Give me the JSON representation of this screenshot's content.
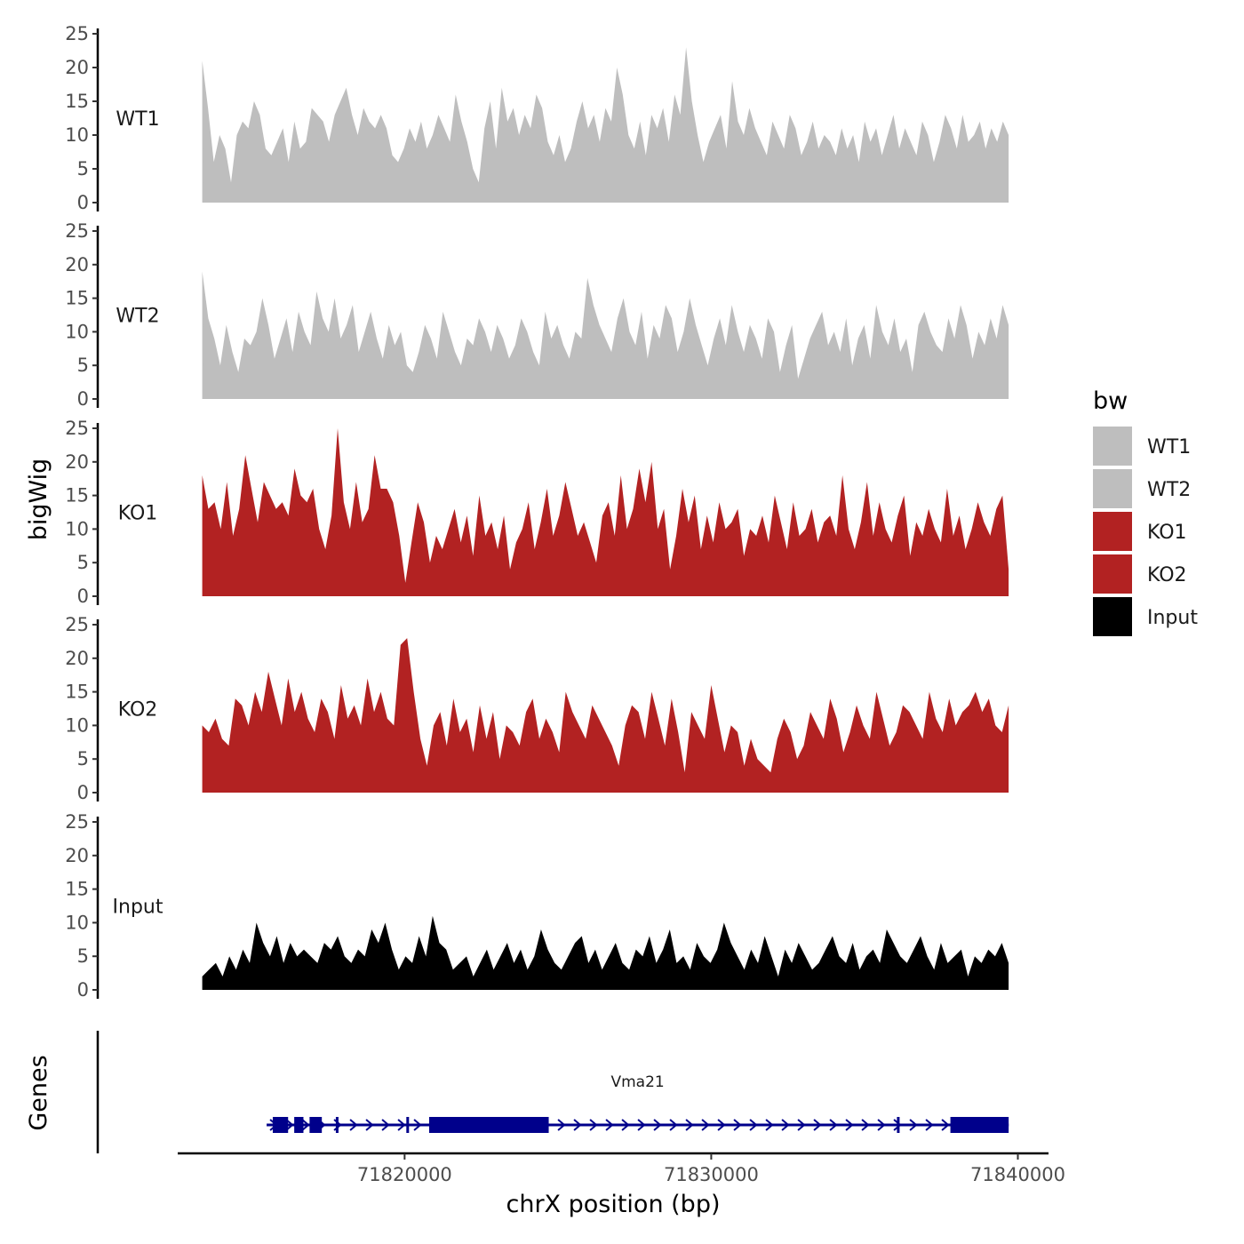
{
  "chart_data": {
    "type": "area",
    "ylabel": "bigWig",
    "xlabel": "chrX position (bp)",
    "ylim": [
      0,
      25
    ],
    "yticks": [
      0,
      5,
      10,
      15,
      20,
      25
    ],
    "xlim": [
      71812600,
      71841000
    ],
    "xticks": [
      71820000,
      71830000,
      71840000
    ],
    "x_start": 71813400,
    "x_end": 71839700,
    "tracks": [
      {
        "name": "WT1",
        "color": "#bebebe",
        "values": [
          21,
          14,
          6,
          10,
          8,
          3,
          10,
          12,
          11,
          15,
          13,
          8,
          7,
          9,
          11,
          6,
          12,
          8,
          9,
          14,
          13,
          12,
          9,
          13,
          15,
          17,
          13,
          10,
          14,
          12,
          11,
          13,
          11,
          7,
          6,
          8,
          11,
          9,
          12,
          8,
          10,
          13,
          11,
          9,
          16,
          12,
          9,
          5,
          3,
          11,
          15,
          8,
          17,
          12,
          14,
          10,
          13,
          11,
          16,
          14,
          9,
          7,
          10,
          6,
          8,
          12,
          15,
          11,
          13,
          9,
          14,
          12,
          20,
          16,
          10,
          8,
          12,
          7,
          13,
          11,
          14,
          9,
          16,
          13,
          23,
          15,
          10,
          6,
          9,
          11,
          13,
          8,
          18,
          12,
          10,
          14,
          11,
          9,
          7,
          12,
          10,
          8,
          13,
          11,
          7,
          9,
          12,
          8,
          10,
          9,
          7,
          11,
          8,
          10,
          6,
          12,
          9,
          11,
          7,
          10,
          13,
          8,
          11,
          9,
          7,
          12,
          10,
          6,
          9,
          13,
          11,
          8,
          13,
          9,
          10,
          12,
          8,
          11,
          9,
          12,
          10
        ]
      },
      {
        "name": "WT2",
        "color": "#bebebe",
        "values": [
          19,
          12,
          9,
          5,
          11,
          7,
          4,
          9,
          8,
          10,
          15,
          11,
          6,
          9,
          12,
          7,
          13,
          10,
          8,
          16,
          12,
          10,
          15,
          9,
          11,
          14,
          7,
          10,
          13,
          9,
          6,
          11,
          8,
          10,
          5,
          4,
          7,
          11,
          9,
          6,
          13,
          10,
          7,
          5,
          9,
          8,
          12,
          10,
          7,
          11,
          9,
          6,
          8,
          12,
          10,
          7,
          5,
          13,
          9,
          11,
          8,
          6,
          10,
          9,
          18,
          14,
          11,
          9,
          7,
          12,
          15,
          10,
          8,
          13,
          6,
          11,
          9,
          14,
          12,
          7,
          10,
          15,
          11,
          8,
          5,
          9,
          12,
          8,
          14,
          10,
          7,
          11,
          9,
          6,
          12,
          10,
          4,
          8,
          11,
          3,
          6,
          9,
          11,
          13,
          8,
          10,
          7,
          12,
          5,
          9,
          11,
          6,
          14,
          10,
          8,
          12,
          7,
          9,
          4,
          11,
          13,
          10,
          8,
          7,
          12,
          9,
          14,
          11,
          6,
          10,
          8,
          12,
          9,
          14,
          11
        ]
      },
      {
        "name": "KO1",
        "color": "#b22222",
        "values": [
          18,
          13,
          14,
          10,
          17,
          9,
          13,
          21,
          16,
          11,
          17,
          15,
          13,
          14,
          12,
          19,
          15,
          14,
          16,
          10,
          7,
          12,
          25,
          14,
          10,
          17,
          11,
          13,
          21,
          16,
          16,
          14,
          9,
          2,
          8,
          14,
          11,
          5,
          9,
          7,
          10,
          13,
          8,
          12,
          6,
          15,
          9,
          11,
          7,
          12,
          4,
          8,
          10,
          14,
          7,
          11,
          16,
          9,
          12,
          17,
          13,
          9,
          11,
          8,
          5,
          12,
          14,
          9,
          18,
          10,
          13,
          19,
          14,
          20,
          10,
          13,
          4,
          9,
          16,
          11,
          15,
          7,
          12,
          8,
          14,
          10,
          11,
          13,
          6,
          10,
          9,
          12,
          8,
          15,
          11,
          7,
          14,
          9,
          10,
          13,
          8,
          11,
          12,
          9,
          18,
          10,
          7,
          11,
          17,
          9,
          14,
          10,
          8,
          12,
          15,
          6,
          11,
          9,
          13,
          10,
          8,
          16,
          9,
          12,
          7,
          10,
          14,
          11,
          9,
          13,
          15,
          4
        ]
      },
      {
        "name": "KO2",
        "color": "#b22222",
        "values": [
          10,
          9,
          11,
          8,
          7,
          14,
          13,
          10,
          15,
          12,
          18,
          14,
          10,
          17,
          12,
          15,
          11,
          9,
          14,
          12,
          8,
          16,
          11,
          13,
          10,
          17,
          12,
          15,
          11,
          10,
          22,
          23,
          15,
          8,
          4,
          10,
          12,
          7,
          14,
          9,
          11,
          6,
          13,
          8,
          12,
          5,
          10,
          9,
          7,
          12,
          14,
          8,
          11,
          9,
          6,
          15,
          12,
          10,
          8,
          13,
          11,
          9,
          7,
          4,
          10,
          13,
          12,
          8,
          15,
          11,
          7,
          14,
          9,
          3,
          12,
          10,
          8,
          16,
          11,
          6,
          10,
          9,
          4,
          8,
          5,
          4,
          3,
          8,
          11,
          9,
          5,
          7,
          12,
          10,
          8,
          14,
          11,
          6,
          9,
          13,
          10,
          8,
          15,
          11,
          7,
          9,
          13,
          12,
          10,
          8,
          15,
          11,
          9,
          14,
          10,
          12,
          13,
          15,
          12,
          14,
          10,
          9,
          13
        ]
      },
      {
        "name": "Input",
        "color": "#000000",
        "values": [
          2,
          3,
          4,
          2,
          5,
          3,
          6,
          4,
          10,
          7,
          5,
          8,
          4,
          7,
          5,
          6,
          5,
          4,
          7,
          6,
          8,
          5,
          4,
          6,
          5,
          9,
          7,
          10,
          6,
          3,
          5,
          4,
          8,
          5,
          11,
          7,
          6,
          3,
          4,
          5,
          2,
          4,
          6,
          3,
          5,
          7,
          4,
          6,
          3,
          5,
          9,
          6,
          4,
          3,
          5,
          7,
          8,
          4,
          6,
          3,
          5,
          7,
          4,
          3,
          6,
          5,
          8,
          4,
          6,
          9,
          4,
          5,
          3,
          7,
          5,
          4,
          6,
          10,
          7,
          5,
          3,
          6,
          4,
          8,
          5,
          2,
          6,
          4,
          7,
          5,
          3,
          4,
          6,
          8,
          5,
          4,
          7,
          3,
          5,
          6,
          4,
          9,
          7,
          5,
          4,
          6,
          8,
          5,
          3,
          7,
          4,
          5,
          6,
          2,
          5,
          4,
          6,
          5,
          7,
          4
        ]
      }
    ],
    "gene": {
      "name": "Vma21",
      "start": 71815500,
      "end": 71839700,
      "strand": "+",
      "color": "#00008b",
      "exons": [
        [
          71815700,
          71816200
        ],
        [
          71816400,
          71816700
        ],
        [
          71816900,
          71817300
        ],
        [
          71820800,
          71824700
        ],
        [
          71837800,
          71839700
        ]
      ],
      "small_exons": [
        71817800,
        71820100,
        71836100
      ]
    },
    "legend": {
      "title": "bw",
      "position": "right",
      "entries": [
        {
          "label": "WT1",
          "color": "#bebebe"
        },
        {
          "label": "WT2",
          "color": "#bebebe"
        },
        {
          "label": "KO1",
          "color": "#b22222"
        },
        {
          "label": "KO2",
          "color": "#b22222"
        },
        {
          "label": "Input",
          "color": "#000000"
        }
      ]
    },
    "genes_panel_label": "Genes"
  }
}
